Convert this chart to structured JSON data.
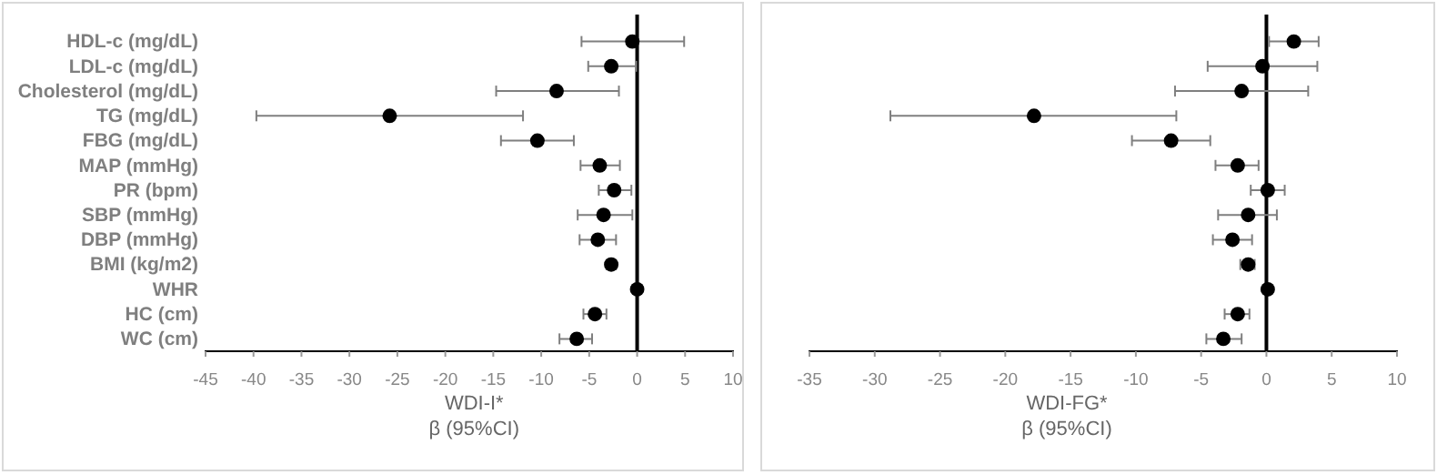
{
  "chart_data": [
    {
      "type": "scatter",
      "orientation": "horizontal",
      "xlabel": "WDI-I*\nβ (95%CI)",
      "marker": "circle",
      "grid": false,
      "categories": [
        "HDL-c (mg/dL)",
        "LDL-c (mg/dL)",
        "Cholesterol (mg/dL)",
        "TG (mg/dL)",
        "FBG (mg/dL)",
        "MAP (mmHg)",
        "PR (bpm)",
        "SBP (mmHg)",
        "DBP (mmHg)",
        "BMI (kg/m2)",
        "WHR",
        "HC (cm)",
        "WC (cm)"
      ],
      "series": [
        {
          "color": "#000000",
          "values": [
            -0.5,
            -2.7,
            -8.4,
            -25.8,
            -10.4,
            -3.9,
            -2.4,
            -3.5,
            -4.1,
            -2.7,
            0,
            -4.4,
            -6.3
          ],
          "errors": [
            [
              -5.8,
              4.9
            ],
            [
              -5.1,
              -0.1
            ],
            [
              -14.7,
              -1.9
            ],
            [
              -39.7,
              -11.9
            ],
            [
              -14.2,
              -6.6
            ],
            [
              -5.9,
              -1.8
            ],
            [
              -4.0,
              -0.6
            ],
            [
              -6.2,
              -0.5
            ],
            [
              -6.0,
              -2.2
            ],
            [
              -3.2,
              -2.2
            ],
            null,
            [
              -5.6,
              -3.2
            ],
            [
              -8.1,
              -4.7
            ]
          ]
        }
      ],
      "xlim": [
        -45,
        10
      ],
      "xticks": [
        -45,
        -40,
        -35,
        -30,
        -25,
        -20,
        -15,
        -10,
        -5,
        0,
        5,
        10
      ],
      "ref_lines": [
        {
          "axis": "x",
          "value": 0,
          "color": "#000000"
        }
      ]
    },
    {
      "type": "scatter",
      "orientation": "horizontal",
      "xlabel": "WDI-FG*\nβ (95%CI)",
      "marker": "circle",
      "grid": false,
      "tick_labels": "x",
      "categories": [
        null,
        null,
        null,
        null,
        null,
        null,
        null,
        null,
        null,
        null,
        null,
        null,
        null
      ],
      "series": [
        {
          "color": "#000000",
          "values": [
            2.1,
            -0.3,
            -1.9,
            -17.8,
            -7.3,
            -2.2,
            0.1,
            -1.4,
            -2.6,
            -1.4,
            0.1,
            -2.2,
            -3.3
          ],
          "errors": [
            [
              0.2,
              4.0
            ],
            [
              -4.5,
              3.9
            ],
            [
              -7.0,
              3.2
            ],
            [
              -28.8,
              -6.9
            ],
            [
              -10.3,
              -4.3
            ],
            [
              -3.9,
              -0.6
            ],
            [
              -1.2,
              1.4
            ],
            [
              -3.7,
              0.8
            ],
            [
              -4.1,
              -1.1
            ],
            [
              -2.0,
              -0.9
            ],
            null,
            [
              -3.2,
              -1.3
            ],
            [
              -4.6,
              -1.9
            ]
          ]
        }
      ],
      "xlim": [
        -35,
        10
      ],
      "xticks": [
        -35,
        -30,
        -25,
        -20,
        -15,
        -10,
        -5,
        0,
        5,
        10
      ],
      "ref_lines": [
        {
          "axis": "x",
          "value": 0,
          "color": "#000000"
        }
      ]
    }
  ]
}
